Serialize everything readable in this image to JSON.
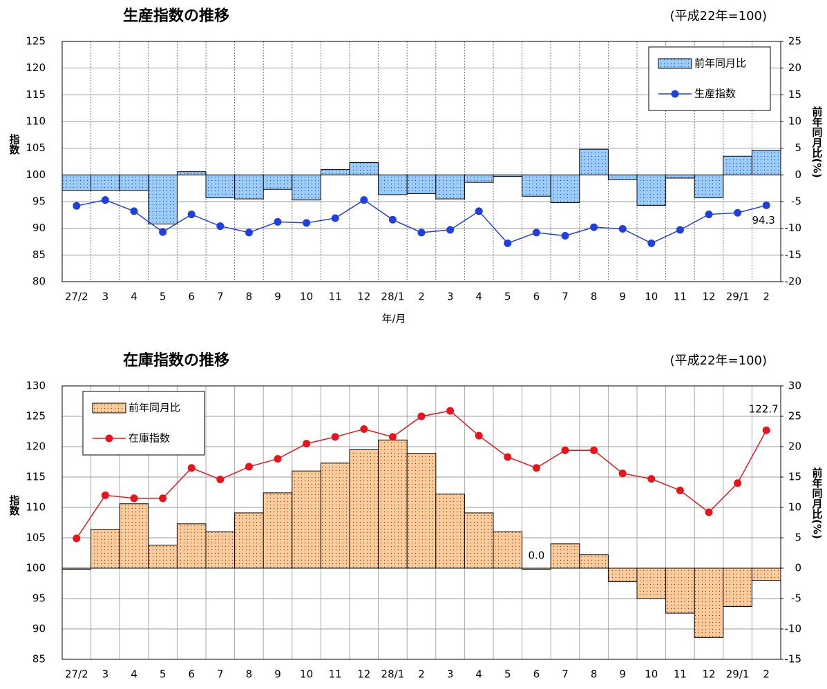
{
  "chart_data": [
    {
      "type": "combo",
      "title": "生産指数の推移",
      "subtitle": "(平成22年=100)",
      "x_label": "年/月",
      "y_label": "指数",
      "y2_label": "前年同月比(%)",
      "categories": [
        "27/2",
        "3",
        "4",
        "5",
        "6",
        "7",
        "8",
        "9",
        "10",
        "11",
        "12",
        "28/1",
        "2",
        "3",
        "4",
        "5",
        "6",
        "7",
        "8",
        "9",
        "10",
        "11",
        "12",
        "29/1",
        "2"
      ],
      "ylim": [
        80,
        125
      ],
      "yticks": [
        80,
        85,
        90,
        95,
        100,
        105,
        110,
        115,
        120,
        125
      ],
      "y2lim": [
        -20,
        25
      ],
      "y2ticks": [
        -20,
        -15,
        -10,
        -5,
        0,
        5,
        10,
        15,
        20,
        25
      ],
      "grid": true,
      "vertical_grid_style": "dotted",
      "legend": "upper right",
      "series": [
        {
          "name": "前年同月比",
          "type": "bar",
          "axis": "y2",
          "color": "#99ccff",
          "values": [
            -2.9,
            -2.9,
            -2.9,
            -9.2,
            0.6,
            -4.3,
            -4.5,
            -2.7,
            -4.7,
            1.0,
            2.3,
            -3.7,
            -3.5,
            -4.5,
            -1.4,
            -0.3,
            -4.0,
            -5.2,
            4.8,
            -0.9,
            -5.7,
            -0.6,
            -4.3,
            3.5,
            4.6
          ]
        },
        {
          "name": "生産指数",
          "type": "line",
          "color": "#1f3fe0",
          "values": [
            94.2,
            95.3,
            93.2,
            89.3,
            92.6,
            90.4,
            89.2,
            91.2,
            91.0,
            91.9,
            95.3,
            91.6,
            89.2,
            89.7,
            93.2,
            87.2,
            89.2,
            88.6,
            90.2,
            89.9,
            87.2,
            89.7,
            92.6,
            92.9,
            94.3
          ],
          "value_labels": [
            null,
            null,
            null,
            null,
            null,
            null,
            null,
            null,
            null,
            null,
            null,
            null,
            null,
            null,
            null,
            null,
            null,
            null,
            null,
            null,
            null,
            null,
            null,
            null,
            "94.3"
          ]
        }
      ]
    },
    {
      "type": "combo",
      "title": "在庫指数の推移",
      "subtitle": "(平成22年=100)",
      "x_label": "年/月",
      "y_label": "指数",
      "y2_label": "前年同月比(%)",
      "categories": [
        "27/2",
        "3",
        "4",
        "5",
        "6",
        "7",
        "8",
        "9",
        "10",
        "11",
        "12",
        "28/1",
        "2",
        "3",
        "4",
        "5",
        "6",
        "7",
        "8",
        "9",
        "10",
        "11",
        "12",
        "29/1",
        "2"
      ],
      "ylim": [
        85,
        130
      ],
      "yticks": [
        85,
        90,
        95,
        100,
        105,
        110,
        115,
        120,
        125,
        130
      ],
      "y2lim": [
        -15,
        30
      ],
      "y2ticks": [
        -15,
        -10,
        -5,
        0,
        5,
        10,
        15,
        20,
        25,
        30
      ],
      "grid": true,
      "vertical_grid_style": "solid",
      "legend": "upper left",
      "series": [
        {
          "name": "前年同月比",
          "type": "bar",
          "axis": "y2",
          "color": "#ffcc99",
          "values": [
            0,
            6.4,
            10.6,
            3.8,
            7.3,
            6.0,
            9.1,
            12.4,
            16.0,
            17.3,
            19.5,
            21.1,
            18.9,
            12.2,
            9.1,
            6.0,
            0,
            4.0,
            2.2,
            -2.2,
            -5.0,
            -7.4,
            -11.4,
            -6.3,
            -2.0
          ],
          "value_labels": [
            null,
            null,
            null,
            null,
            null,
            null,
            null,
            null,
            null,
            null,
            null,
            null,
            null,
            null,
            null,
            null,
            "0.0",
            null,
            null,
            null,
            null,
            null,
            null,
            null,
            null
          ]
        },
        {
          "name": "在庫指数",
          "type": "line",
          "color": "#e8141c",
          "values": [
            104.9,
            112.0,
            111.5,
            111.5,
            116.5,
            114.6,
            116.7,
            118.0,
            120.5,
            121.6,
            122.9,
            121.6,
            125.0,
            125.9,
            121.8,
            118.3,
            116.5,
            119.4,
            119.4,
            115.6,
            114.7,
            112.8,
            109.2,
            114.0,
            122.7
          ],
          "value_labels": [
            null,
            null,
            null,
            null,
            null,
            null,
            null,
            null,
            null,
            null,
            null,
            null,
            null,
            null,
            null,
            null,
            null,
            null,
            null,
            null,
            null,
            null,
            null,
            null,
            "122.7"
          ]
        }
      ]
    }
  ]
}
